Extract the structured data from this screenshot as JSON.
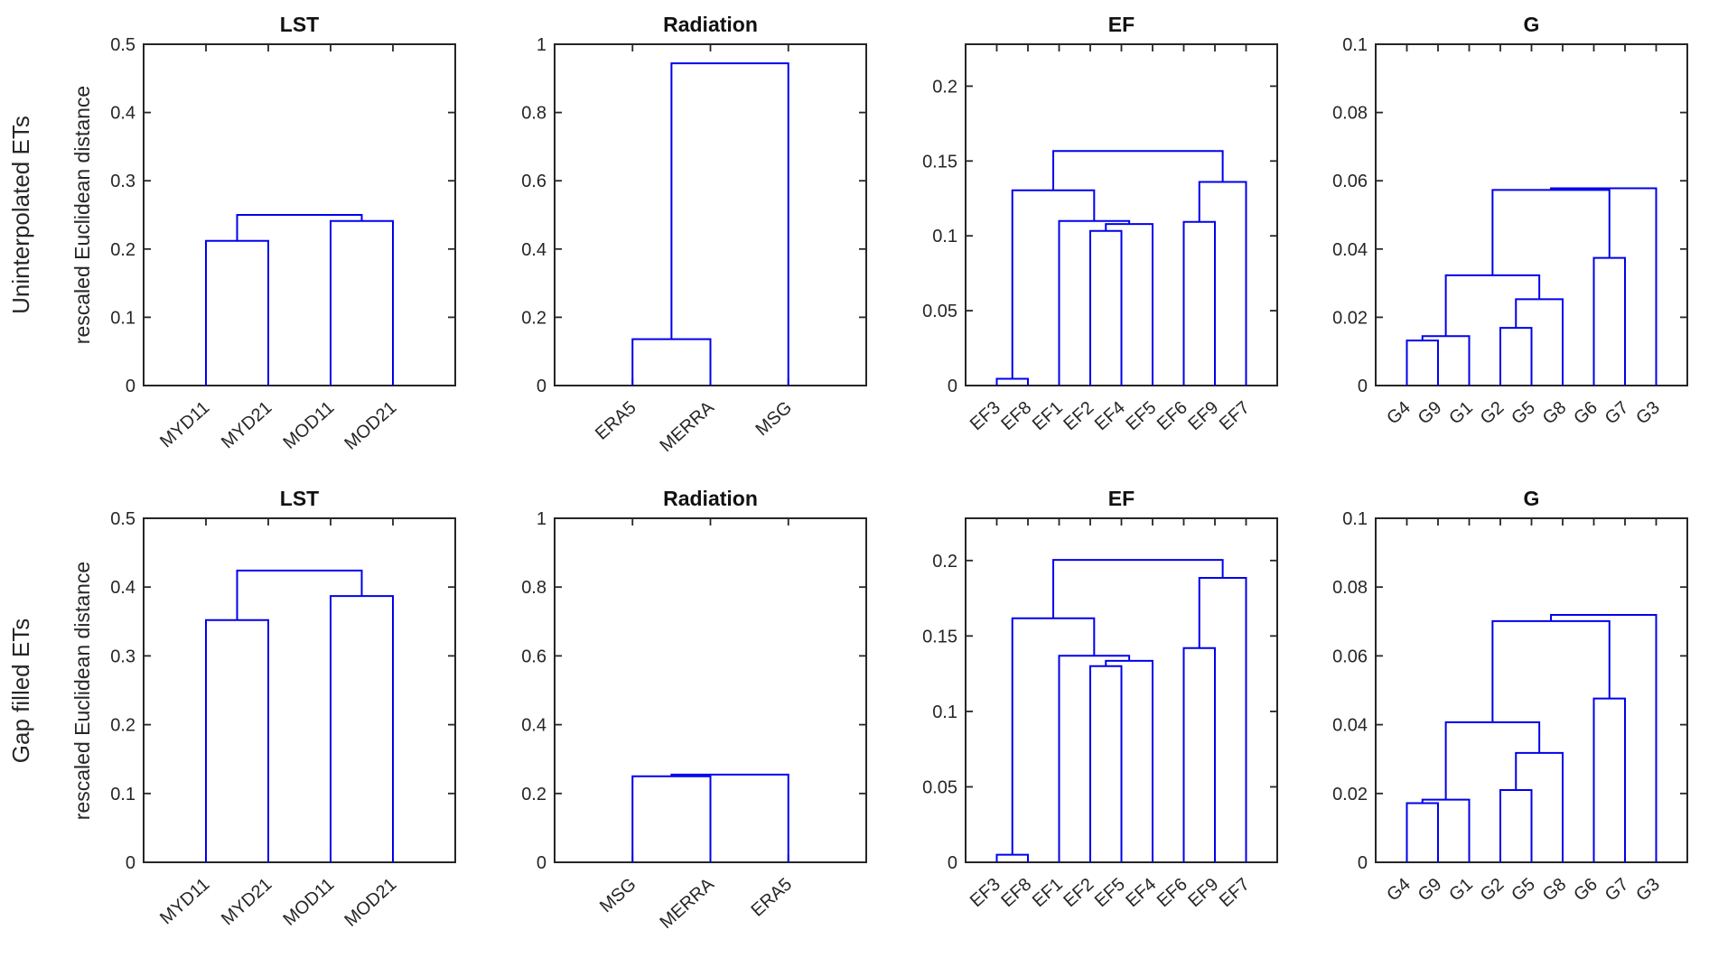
{
  "figure": {
    "row_labels": [
      "Uninterpolated ETs",
      "Gap filled ETs"
    ],
    "ylabel": "rescaled Euclidean distance",
    "line_color": "#0000ee",
    "axis_color": "#262626"
  },
  "chart_data": [
    {
      "type": "dendrogram",
      "row": 0,
      "col": 0,
      "title": "LST",
      "ylim": [
        0,
        0.5
      ],
      "yticks": [
        0,
        0.1,
        0.2,
        0.3,
        0.4,
        0.5
      ],
      "leaves": [
        "MYD11",
        "MYD21",
        "MOD11",
        "MOD21"
      ],
      "merges": [
        [
          "MYD11",
          "MYD21",
          0.212
        ],
        [
          "MOD11",
          "MOD21",
          0.241
        ],
        [
          "#0",
          "#1",
          0.25
        ]
      ]
    },
    {
      "type": "dendrogram",
      "row": 0,
      "col": 1,
      "title": "Radiation",
      "ylim": [
        0,
        1
      ],
      "yticks": [
        0,
        0.2,
        0.4,
        0.6,
        0.8,
        1
      ],
      "leaves": [
        "ERA5",
        "MERRA",
        "MSG"
      ],
      "merges": [
        [
          "ERA5",
          "MERRA",
          0.136
        ],
        [
          "#0",
          "MSG",
          0.944
        ]
      ]
    },
    {
      "type": "dendrogram",
      "row": 0,
      "col": 2,
      "title": "EF",
      "ylim": [
        0,
        0.228
      ],
      "yticks": [
        0,
        0.05,
        0.1,
        0.15,
        0.2
      ],
      "leaves": [
        "EF3",
        "EF8",
        "EF1",
        "EF2",
        "EF4",
        "EF5",
        "EF6",
        "EF9",
        "EF7"
      ],
      "merges": [
        [
          "EF3",
          "EF8",
          0.0045
        ],
        [
          "EF2",
          "EF4",
          0.1033
        ],
        [
          "#1",
          "EF5",
          0.1079
        ],
        [
          "EF1",
          "#2",
          0.1099
        ],
        [
          "#0",
          "#3",
          0.1304
        ],
        [
          "EF6",
          "EF9",
          0.1093
        ],
        [
          "#5",
          "EF7",
          0.136
        ],
        [
          "#4",
          "#6",
          0.1567
        ]
      ]
    },
    {
      "type": "dendrogram",
      "row": 0,
      "col": 3,
      "title": "G",
      "ylim": [
        0,
        0.1
      ],
      "yticks": [
        0,
        0.02,
        0.04,
        0.06,
        0.08,
        0.1
      ],
      "leaves": [
        "G4",
        "G9",
        "G1",
        "G2",
        "G5",
        "G8",
        "G6",
        "G7",
        "G3"
      ],
      "merges": [
        [
          "G4",
          "G9",
          0.0132
        ],
        [
          "#0",
          "G1",
          0.0145
        ],
        [
          "G2",
          "G5",
          0.0169
        ],
        [
          "#2",
          "G8",
          0.0253
        ],
        [
          "#1",
          "#3",
          0.0323
        ],
        [
          "G6",
          "G7",
          0.0374
        ],
        [
          "#4",
          "#5",
          0.0573
        ],
        [
          "#6",
          "G3",
          0.0578
        ]
      ]
    },
    {
      "type": "dendrogram",
      "row": 1,
      "col": 0,
      "title": "LST",
      "ylim": [
        0,
        0.5
      ],
      "yticks": [
        0,
        0.1,
        0.2,
        0.3,
        0.4,
        0.5
      ],
      "leaves": [
        "MYD11",
        "MYD21",
        "MOD11",
        "MOD21"
      ],
      "merges": [
        [
          "MYD11",
          "MYD21",
          0.352
        ],
        [
          "MOD11",
          "MOD21",
          0.387
        ],
        [
          "#0",
          "#1",
          0.424
        ]
      ]
    },
    {
      "type": "dendrogram",
      "row": 1,
      "col": 1,
      "title": "Radiation",
      "ylim": [
        0,
        1
      ],
      "yticks": [
        0,
        0.2,
        0.4,
        0.6,
        0.8,
        1
      ],
      "leaves": [
        "MSG",
        "MERRA",
        "ERA5"
      ],
      "merges": [
        [
          "MSG",
          "MERRA",
          0.25
        ],
        [
          "#0",
          "ERA5",
          0.255
        ]
      ]
    },
    {
      "type": "dendrogram",
      "row": 1,
      "col": 2,
      "title": "EF",
      "ylim": [
        0,
        0.228
      ],
      "yticks": [
        0,
        0.05,
        0.1,
        0.15,
        0.2
      ],
      "leaves": [
        "EF3",
        "EF8",
        "EF1",
        "EF2",
        "EF5",
        "EF4",
        "EF6",
        "EF9",
        "EF7"
      ],
      "merges": [
        [
          "EF3",
          "EF8",
          0.005
        ],
        [
          "EF2",
          "EF5",
          0.13
        ],
        [
          "#1",
          "EF4",
          0.1335
        ],
        [
          "EF1",
          "#2",
          0.1369
        ],
        [
          "#0",
          "#3",
          0.1617
        ],
        [
          "EF6",
          "EF9",
          0.142
        ],
        [
          "#5",
          "EF7",
          0.1885
        ],
        [
          "#4",
          "#6",
          0.2004
        ]
      ]
    },
    {
      "type": "dendrogram",
      "row": 1,
      "col": 3,
      "title": "G",
      "ylim": [
        0,
        0.1
      ],
      "yticks": [
        0,
        0.02,
        0.04,
        0.06,
        0.08,
        0.1
      ],
      "leaves": [
        "G4",
        "G9",
        "G1",
        "G2",
        "G5",
        "G8",
        "G6",
        "G7",
        "G3"
      ],
      "merges": [
        [
          "G4",
          "G9",
          0.0172
        ],
        [
          "#0",
          "G1",
          0.0182
        ],
        [
          "G2",
          "G5",
          0.021
        ],
        [
          "#2",
          "G8",
          0.0318
        ],
        [
          "#1",
          "#3",
          0.0407
        ],
        [
          "G6",
          "G7",
          0.0476
        ],
        [
          "#4",
          "#5",
          0.0701
        ],
        [
          "#6",
          "G3",
          0.0719
        ]
      ]
    }
  ]
}
